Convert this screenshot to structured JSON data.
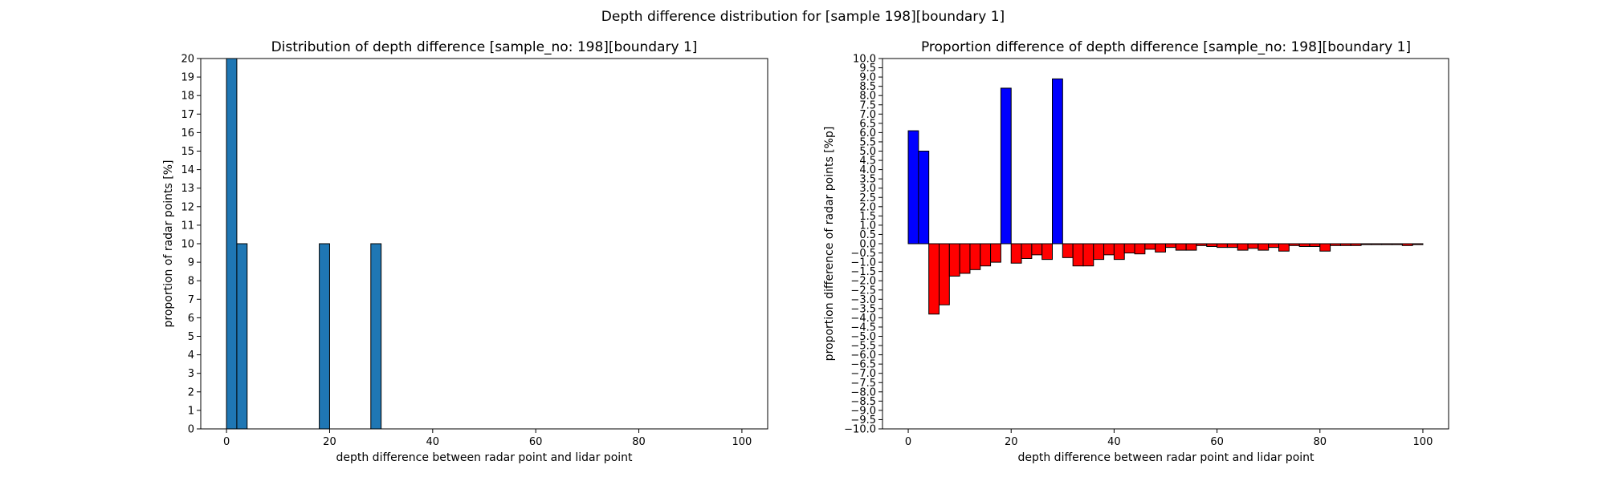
{
  "figure": {
    "suptitle": "Depth difference distribution for [sample 198][boundary 1]"
  },
  "chart_data": [
    {
      "type": "bar",
      "title": "Distribution of depth difference [sample_no: 198][boundary 1]",
      "xlabel": "depth difference between radar point and lidar point",
      "ylabel": "proportion of radar points [%]",
      "xlim": [
        -5,
        105
      ],
      "ylim": [
        0,
        20
      ],
      "x_ticks": [
        0,
        20,
        40,
        60,
        80,
        100
      ],
      "y_ticks": [
        0,
        1,
        2,
        3,
        4,
        5,
        6,
        7,
        8,
        9,
        10,
        11,
        12,
        13,
        14,
        15,
        16,
        17,
        18,
        19,
        20
      ],
      "bin_width": 2,
      "bar_color": "#1f77b4",
      "edge_color": "#000000",
      "bins": [
        {
          "x0": 0,
          "value": 20
        },
        {
          "x0": 2,
          "value": 10
        },
        {
          "x0": 18,
          "value": 10
        },
        {
          "x0": 28,
          "value": 10
        }
      ]
    },
    {
      "type": "bar",
      "title": "Proportion difference of depth difference [sample_no: 198][boundary 1]",
      "xlabel": "depth difference between radar point and lidar point",
      "ylabel": "proportion difference of radar points [%p]",
      "xlim": [
        -5,
        105
      ],
      "ylim": [
        -10,
        10
      ],
      "x_ticks": [
        0,
        20,
        40,
        60,
        80,
        100
      ],
      "y_ticks": [
        -10.0,
        -9.5,
        -9.0,
        -8.5,
        -8.0,
        -7.5,
        -7.0,
        -6.5,
        -6.0,
        -5.5,
        -5.0,
        -4.5,
        -4.0,
        -3.5,
        -3.0,
        -2.5,
        -2.0,
        -1.5,
        -1.0,
        -0.5,
        0.0,
        0.5,
        1.0,
        1.5,
        2.0,
        2.5,
        3.0,
        3.5,
        4.0,
        4.5,
        5.0,
        5.5,
        6.0,
        6.5,
        7.0,
        7.5,
        8.0,
        8.5,
        9.0,
        9.5,
        10.0
      ],
      "bin_width": 2,
      "positive_color": "#0000ff",
      "negative_color": "#ff0000",
      "edge_color": "#000000",
      "bins": [
        {
          "x0": 0,
          "value": 6.1
        },
        {
          "x0": 2,
          "value": 5.0
        },
        {
          "x0": 4,
          "value": -3.8
        },
        {
          "x0": 6,
          "value": -3.3
        },
        {
          "x0": 8,
          "value": -1.75
        },
        {
          "x0": 10,
          "value": -1.6
        },
        {
          "x0": 12,
          "value": -1.4
        },
        {
          "x0": 14,
          "value": -1.2
        },
        {
          "x0": 16,
          "value": -1.0
        },
        {
          "x0": 18,
          "value": 8.4
        },
        {
          "x0": 20,
          "value": -1.05
        },
        {
          "x0": 22,
          "value": -0.8
        },
        {
          "x0": 24,
          "value": -0.6
        },
        {
          "x0": 26,
          "value": -0.85
        },
        {
          "x0": 28,
          "value": 8.9
        },
        {
          "x0": 30,
          "value": -0.75
        },
        {
          "x0": 32,
          "value": -1.2
        },
        {
          "x0": 34,
          "value": -1.2
        },
        {
          "x0": 36,
          "value": -0.85
        },
        {
          "x0": 38,
          "value": -0.6
        },
        {
          "x0": 40,
          "value": -0.85
        },
        {
          "x0": 42,
          "value": -0.5
        },
        {
          "x0": 44,
          "value": -0.55
        },
        {
          "x0": 46,
          "value": -0.3
        },
        {
          "x0": 48,
          "value": -0.45
        },
        {
          "x0": 50,
          "value": -0.2
        },
        {
          "x0": 52,
          "value": -0.35
        },
        {
          "x0": 54,
          "value": -0.35
        },
        {
          "x0": 56,
          "value": -0.1
        },
        {
          "x0": 58,
          "value": -0.15
        },
        {
          "x0": 60,
          "value": -0.2
        },
        {
          "x0": 62,
          "value": -0.2
        },
        {
          "x0": 64,
          "value": -0.35
        },
        {
          "x0": 66,
          "value": -0.25
        },
        {
          "x0": 68,
          "value": -0.35
        },
        {
          "x0": 70,
          "value": -0.2
        },
        {
          "x0": 72,
          "value": -0.4
        },
        {
          "x0": 74,
          "value": -0.1
        },
        {
          "x0": 76,
          "value": -0.15
        },
        {
          "x0": 78,
          "value": -0.15
        },
        {
          "x0": 80,
          "value": -0.4
        },
        {
          "x0": 82,
          "value": -0.1
        },
        {
          "x0": 84,
          "value": -0.1
        },
        {
          "x0": 86,
          "value": -0.1
        },
        {
          "x0": 88,
          "value": -0.05
        },
        {
          "x0": 90,
          "value": -0.05
        },
        {
          "x0": 92,
          "value": -0.05
        },
        {
          "x0": 94,
          "value": -0.05
        },
        {
          "x0": 96,
          "value": -0.1
        },
        {
          "x0": 98,
          "value": -0.05
        }
      ]
    }
  ]
}
